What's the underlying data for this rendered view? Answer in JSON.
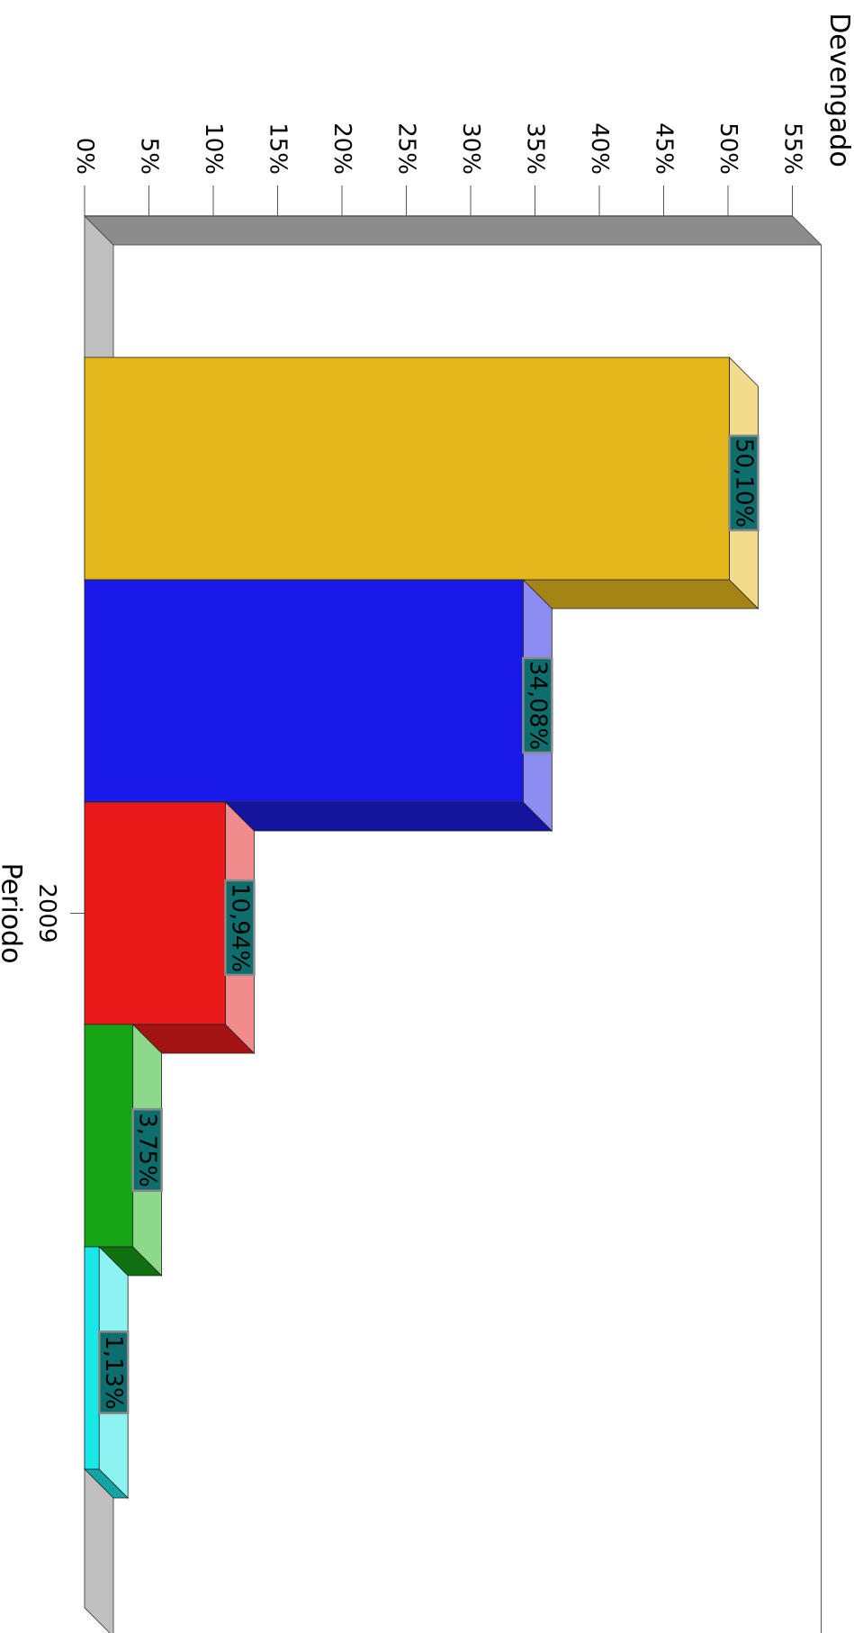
{
  "chart_data": {
    "type": "bar",
    "title": "",
    "xlabel": "Periodo",
    "ylabel": "Devengado",
    "categories": [
      "2009"
    ],
    "ylim": [
      0,
      55
    ],
    "y_ticks": [
      "0%",
      "5%",
      "10%",
      "15%",
      "20%",
      "25%",
      "30%",
      "35%",
      "40%",
      "45%",
      "50%",
      "55%"
    ],
    "orientation": "rotated 90° clockwise (page turned sideways)",
    "grid": false,
    "legend": "none",
    "series": [
      {
        "values": [
          50.1
        ],
        "label": "50,10%",
        "color": "#E3B719",
        "top_color": "#F2DC8C",
        "side_color": "#A48414"
      },
      {
        "values": [
          34.08
        ],
        "label": "34,08%",
        "color": "#1919E8",
        "top_color": "#8C8CF2",
        "side_color": "#14149E"
      },
      {
        "values": [
          10.94
        ],
        "label": "10,94%",
        "color": "#E81919",
        "top_color": "#F28C8C",
        "side_color": "#A41414"
      },
      {
        "values": [
          3.75
        ],
        "label": "3,75%",
        "color": "#14A414",
        "top_color": "#8CD98C",
        "side_color": "#0F700F"
      },
      {
        "values": [
          1.13
        ],
        "label": "1,13%",
        "color": "#19E8E8",
        "top_color": "#8CF2F2",
        "side_color": "#14A4A4"
      }
    ],
    "label_box_color": "#0E6E6E",
    "label_box_border": "#8A8A8A",
    "floor_color": "#C0C0C0",
    "back_wall_color": "#8C8C8C"
  }
}
